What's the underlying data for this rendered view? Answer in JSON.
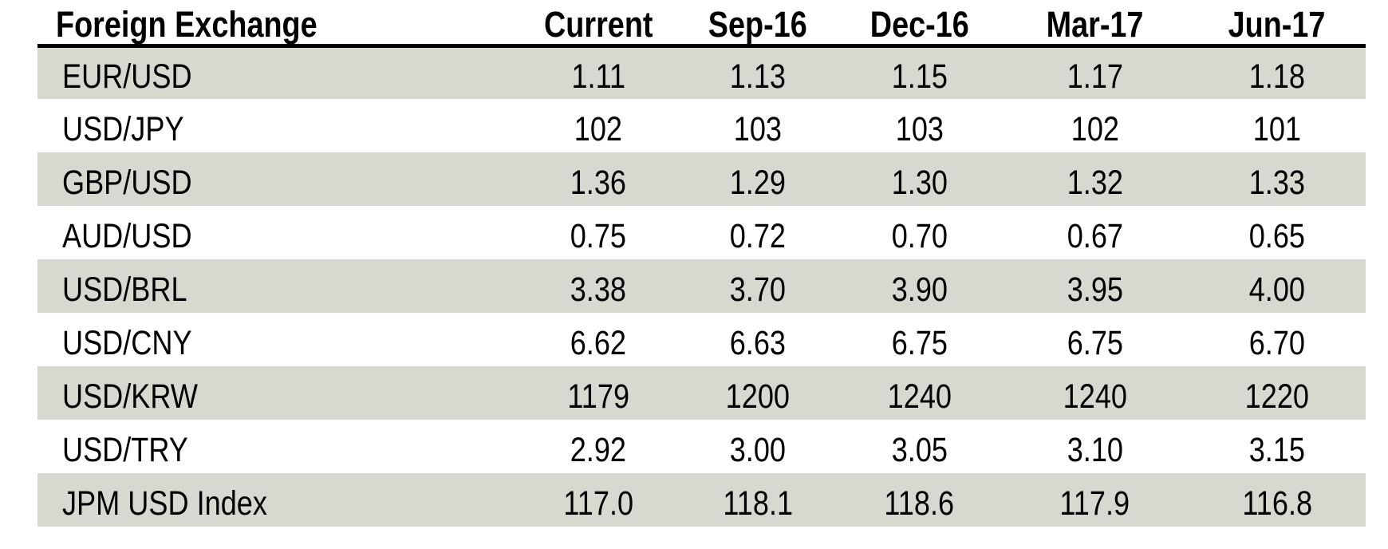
{
  "table": {
    "header": {
      "label_column": "Foreign Exchange",
      "value_columns": [
        "Current",
        "Sep-16",
        "Dec-16",
        "Mar-17",
        "Jun-17"
      ]
    },
    "rows": [
      {
        "label": "EUR/USD",
        "values": [
          "1.11",
          "1.13",
          "1.15",
          "1.17",
          "1.18"
        ]
      },
      {
        "label": "USD/JPY",
        "values": [
          "102",
          "103",
          "103",
          "102",
          "101"
        ]
      },
      {
        "label": "GBP/USD",
        "values": [
          "1.36",
          "1.29",
          "1.30",
          "1.32",
          "1.33"
        ]
      },
      {
        "label": "AUD/USD",
        "values": [
          "0.75",
          "0.72",
          "0.70",
          "0.67",
          "0.65"
        ]
      },
      {
        "label": "USD/BRL",
        "values": [
          "3.38",
          "3.70",
          "3.90",
          "3.95",
          "4.00"
        ]
      },
      {
        "label": "USD/CNY",
        "values": [
          "6.62",
          "6.63",
          "6.75",
          "6.75",
          "6.70"
        ]
      },
      {
        "label": "USD/KRW",
        "values": [
          "1179",
          "1200",
          "1240",
          "1240",
          "1220"
        ]
      },
      {
        "label": "USD/TRY",
        "values": [
          "2.92",
          "3.00",
          "3.05",
          "3.10",
          "3.15"
        ]
      },
      {
        "label": "JPM USD Index",
        "values": [
          "117.0",
          "118.1",
          "118.6",
          "117.9",
          "116.8"
        ]
      }
    ]
  },
  "colors": {
    "stripe": "#d8d7d0",
    "rule": "#000000",
    "text": "#000000",
    "background": "#ffffff"
  },
  "chart_data": {
    "type": "table",
    "title": "Foreign Exchange",
    "columns": [
      "Current",
      "Sep-16",
      "Dec-16",
      "Mar-17",
      "Jun-17"
    ],
    "rows": [
      {
        "label": "EUR/USD",
        "values": [
          1.11,
          1.13,
          1.15,
          1.17,
          1.18
        ]
      },
      {
        "label": "USD/JPY",
        "values": [
          102,
          103,
          103,
          102,
          101
        ]
      },
      {
        "label": "GBP/USD",
        "values": [
          1.36,
          1.29,
          1.3,
          1.32,
          1.33
        ]
      },
      {
        "label": "AUD/USD",
        "values": [
          0.75,
          0.72,
          0.7,
          0.67,
          0.65
        ]
      },
      {
        "label": "USD/BRL",
        "values": [
          3.38,
          3.7,
          3.9,
          3.95,
          4.0
        ]
      },
      {
        "label": "USD/CNY",
        "values": [
          6.62,
          6.63,
          6.75,
          6.75,
          6.7
        ]
      },
      {
        "label": "USD/KRW",
        "values": [
          1179,
          1200,
          1240,
          1240,
          1220
        ]
      },
      {
        "label": "USD/TRY",
        "values": [
          2.92,
          3.0,
          3.05,
          3.1,
          3.15
        ]
      },
      {
        "label": "JPM USD Index",
        "values": [
          117.0,
          118.1,
          118.6,
          117.9,
          116.8
        ]
      }
    ],
    "layout": {
      "row_striping": true,
      "stripe_start": "first-row",
      "numeric_alignment": "center",
      "header_rule": "thick-black"
    }
  }
}
